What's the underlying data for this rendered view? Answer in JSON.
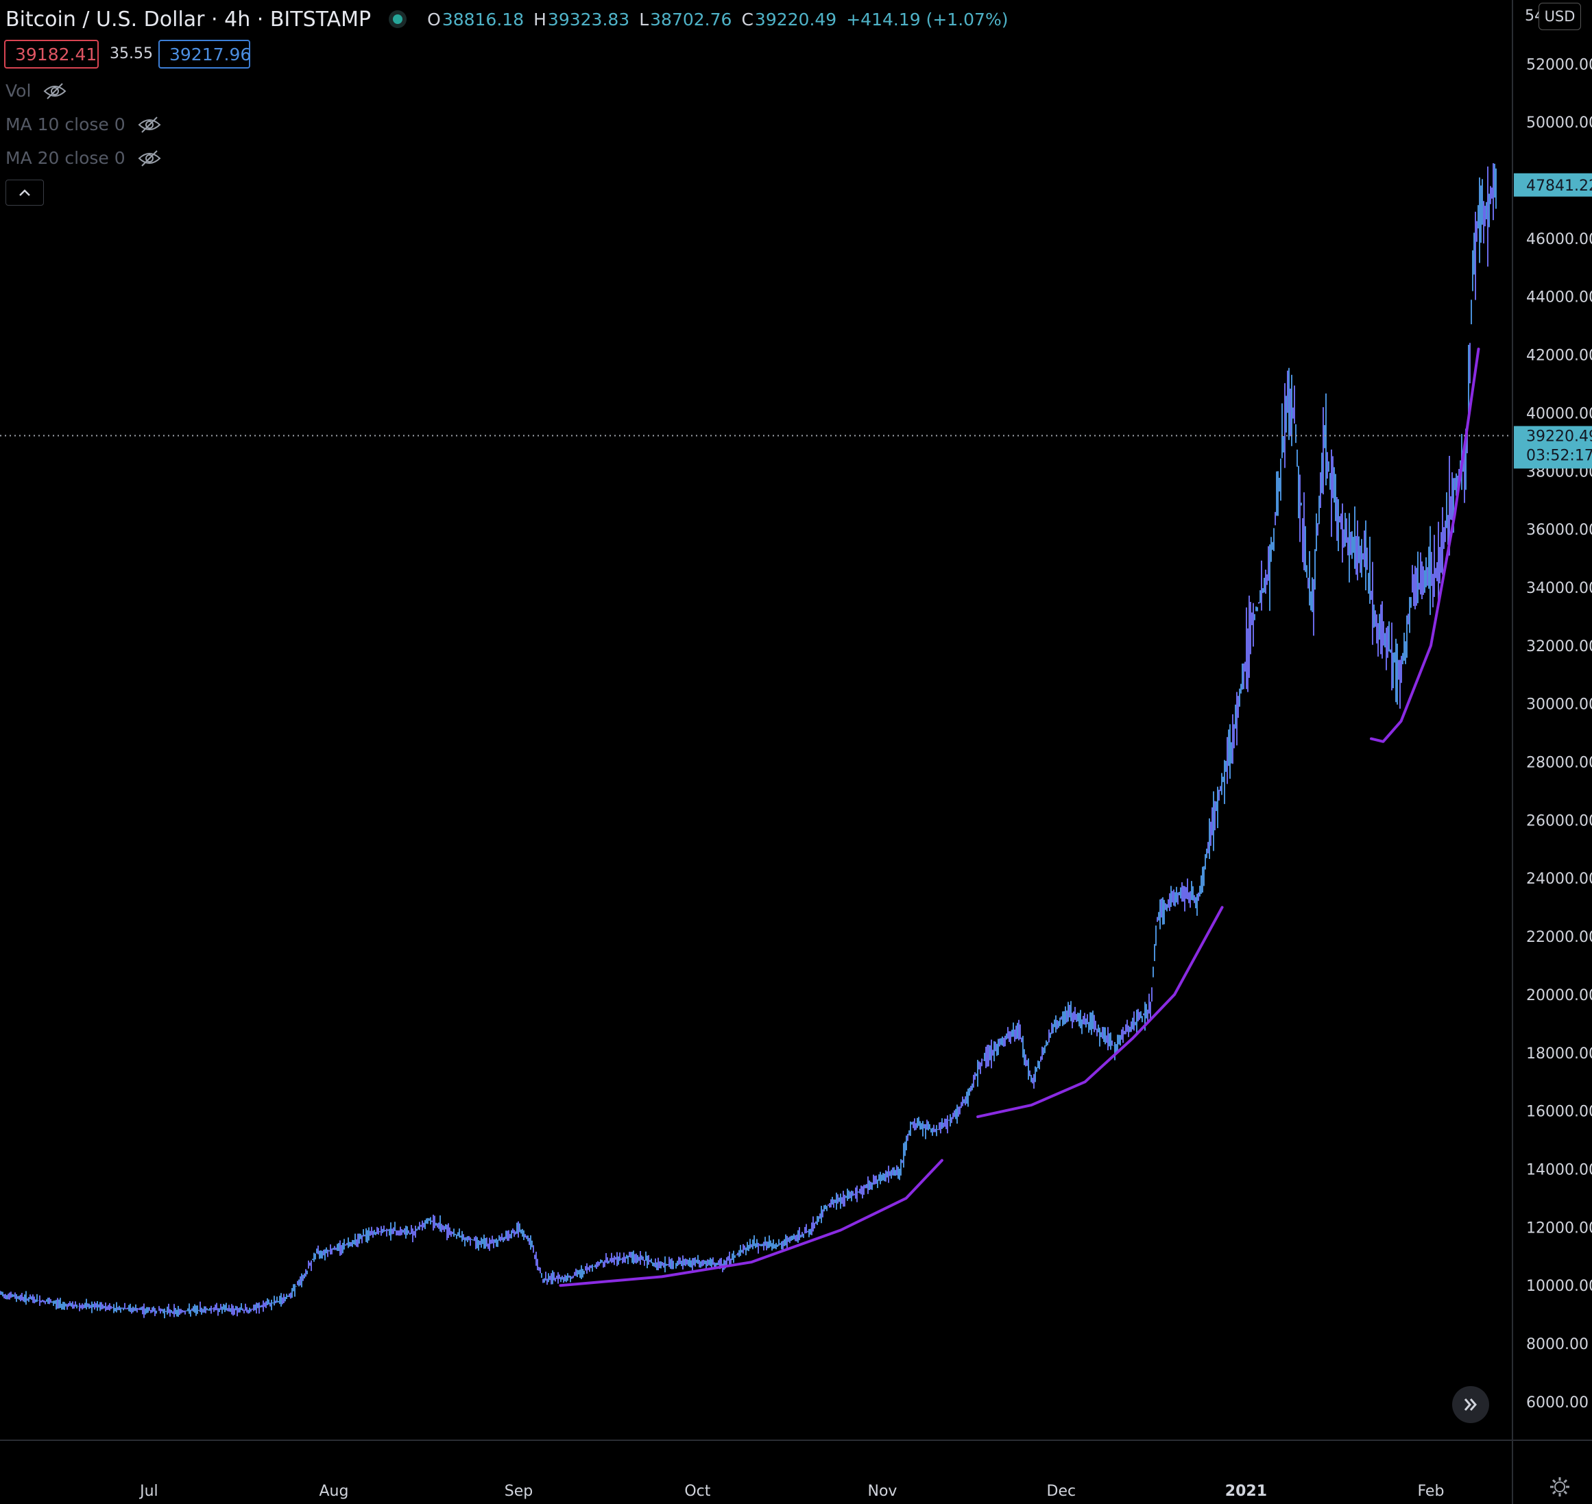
{
  "header": {
    "title": "Bitcoin / U.S. Dollar · 4h · BITSTAMP",
    "open_label": "O",
    "open": "38816.18",
    "high_label": "H",
    "high": "39323.83",
    "low_label": "L",
    "low": "38702.76",
    "close_label": "C",
    "close": "39220.49",
    "change": "+414.19 (+1.07%)"
  },
  "trade": {
    "sell": "39182.41",
    "spread": "35.55",
    "buy": "39217.96"
  },
  "indicators": [
    {
      "label": "Vol"
    },
    {
      "label": "MA 10 close 0"
    },
    {
      "label": "MA 20 close 0"
    }
  ],
  "currency": "USD",
  "price_labels": {
    "last": "39220.49",
    "countdown": "03:52:17",
    "high_marker": "47841.22",
    "top_clipped": "54"
  },
  "colors": {
    "candle": "#4a90d9",
    "candle_alt": "#6a6ae8",
    "trend_curve": "#8a2be2",
    "price_tag": "#4fb3c8",
    "grid_text": "#d1d4dc"
  },
  "chart_data": {
    "type": "line",
    "symbol": "BTCUSD",
    "timeframe": "4h",
    "x_ticks": [
      "Jul",
      "Aug",
      "Sep",
      "Oct",
      "Nov",
      "Dec",
      "2021",
      "Feb"
    ],
    "x_tick_dates": [
      "2020-07-01",
      "2020-08-01",
      "2020-09-01",
      "2020-10-01",
      "2020-11-01",
      "2020-12-01",
      "2021-01-01",
      "2021-02-01"
    ],
    "y_ticks": [
      "6000.00",
      "8000.00",
      "10000.00",
      "12000.00",
      "14000.00",
      "16000.00",
      "18000.00",
      "20000.00",
      "22000.00",
      "24000.00",
      "26000.00",
      "28000.00",
      "30000.00",
      "32000.00",
      "34000.00",
      "36000.00",
      "38000.00",
      "40000.00",
      "42000.00",
      "44000.00",
      "46000.00",
      "48000.00",
      "50000.00",
      "52000.00"
    ],
    "ylim": [
      4700,
      54200
    ],
    "xlim": [
      "2020-06-06",
      "2021-02-14"
    ],
    "series": [
      {
        "x": [
          "2020-06-06",
          "2020-06-12",
          "2020-06-18",
          "2020-06-24",
          "2020-06-30",
          "2020-07-06",
          "2020-07-12",
          "2020-07-18",
          "2020-07-24",
          "2020-07-27",
          "2020-07-29",
          "2020-08-02",
          "2020-08-06",
          "2020-08-10",
          "2020-08-14",
          "2020-08-17",
          "2020-08-22",
          "2020-08-27",
          "2020-09-01",
          "2020-09-03",
          "2020-09-05",
          "2020-09-10",
          "2020-09-15",
          "2020-09-20",
          "2020-09-25",
          "2020-09-30",
          "2020-10-05",
          "2020-10-10",
          "2020-10-15",
          "2020-10-20",
          "2020-10-23",
          "2020-10-27",
          "2020-10-31",
          "2020-11-04",
          "2020-11-06",
          "2020-11-10",
          "2020-11-14",
          "2020-11-18",
          "2020-11-22",
          "2020-11-24",
          "2020-11-26",
          "2020-11-30",
          "2020-12-02",
          "2020-12-06",
          "2020-12-10",
          "2020-12-12",
          "2020-12-16",
          "2020-12-17",
          "2020-12-20",
          "2020-12-24",
          "2020-12-27",
          "2020-12-30",
          "2021-01-02",
          "2021-01-05",
          "2021-01-08",
          "2021-01-09",
          "2021-01-11",
          "2021-01-12",
          "2021-01-14",
          "2021-01-17",
          "2021-01-21",
          "2021-01-23",
          "2021-01-26",
          "2021-01-27",
          "2021-01-29",
          "2021-02-02",
          "2021-02-05",
          "2021-02-07",
          "2021-02-08",
          "2021-02-09",
          "2021-02-11",
          "2021-02-12"
        ],
        "values": [
          9700,
          9500,
          9300,
          9250,
          9150,
          9100,
          9200,
          9150,
          9550,
          10300,
          11100,
          11300,
          11700,
          11900,
          11800,
          12250,
          11700,
          11400,
          11900,
          11500,
          10200,
          10300,
          10800,
          11000,
          10700,
          10800,
          10700,
          11400,
          11400,
          11900,
          12800,
          13100,
          13600,
          14000,
          15600,
          15300,
          16000,
          17800,
          18500,
          18800,
          17000,
          19000,
          19300,
          19000,
          18200,
          18800,
          19500,
          22500,
          23500,
          23300,
          26500,
          29000,
          32800,
          34500,
          40500,
          40000,
          35000,
          33000,
          39000,
          36000,
          35000,
          32500,
          31500,
          31000,
          34000,
          34500,
          37500,
          38500,
          44500,
          46500,
          47500,
          47800
        ]
      }
    ],
    "trend_curves": [
      {
        "x": [
          "2020-09-08",
          "2020-09-25",
          "2020-10-10",
          "2020-10-25",
          "2020-11-05",
          "2020-11-11"
        ],
        "values": [
          10000,
          10300,
          10800,
          11900,
          13000,
          14300
        ]
      },
      {
        "x": [
          "2020-11-17",
          "2020-11-26",
          "2020-12-05",
          "2020-12-13",
          "2020-12-20",
          "2020-12-28"
        ],
        "values": [
          15800,
          16200,
          17000,
          18500,
          20000,
          23000
        ]
      },
      {
        "x": [
          "2021-01-22",
          "2021-01-24",
          "2021-01-27",
          "2021-02-01",
          "2021-02-05",
          "2021-02-09"
        ],
        "values": [
          28800,
          28700,
          29400,
          32000,
          36500,
          42200
        ]
      }
    ],
    "last_price": 39220.49,
    "high_marker": 47841.22,
    "grid": false,
    "legend": "none"
  }
}
